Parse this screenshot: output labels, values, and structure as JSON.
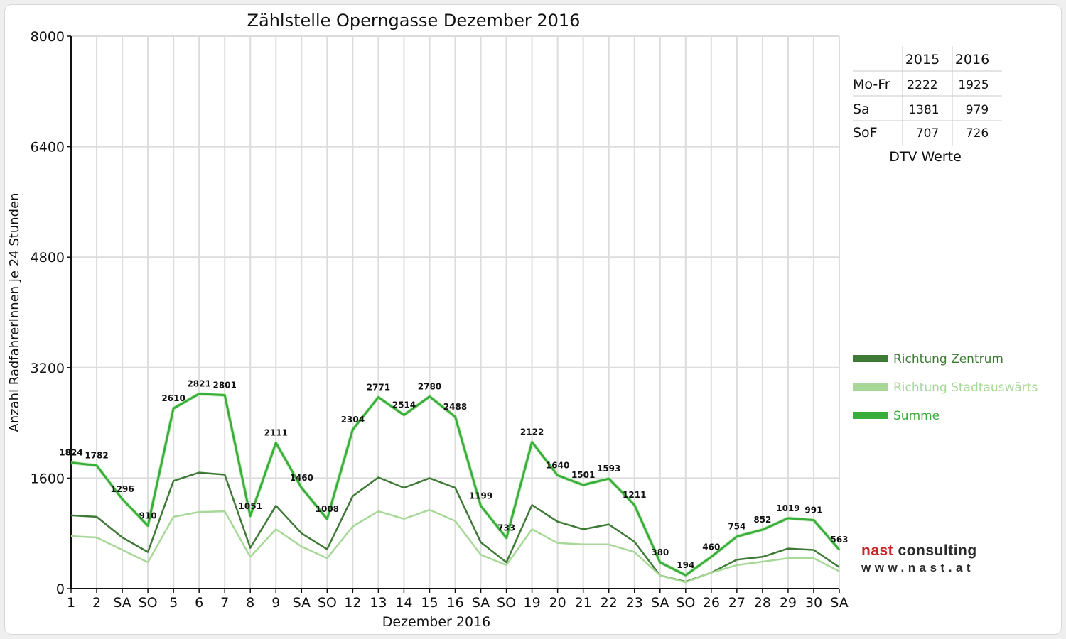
{
  "chart_data": {
    "type": "line",
    "title": "Zählstelle Operngasse Dezember 2016",
    "xlabel": "Dezember 2016",
    "ylabel": "Anzahl RadfahrerInnen je 24 Stunden",
    "ylim": [
      0,
      8000
    ],
    "yticks": [
      "0",
      "1600",
      "3200",
      "4800",
      "6400",
      "8000"
    ],
    "categories": [
      "1",
      "2",
      "SA",
      "SO",
      "5",
      "6",
      "7",
      "8",
      "9",
      "SA",
      "SO",
      "12",
      "13",
      "14",
      "15",
      "16",
      "SA",
      "SO",
      "19",
      "20",
      "21",
      "22",
      "23",
      "SA",
      "SO",
      "26",
      "27",
      "28",
      "29",
      "30",
      "SA"
    ],
    "highlight_categories": [
      "SO",
      "8",
      "26"
    ],
    "grid": true,
    "legend_position": "right",
    "series": [
      {
        "name": "Richtung Zentrum",
        "color": "#3e7a35",
        "values": [
          1060,
          1040,
          740,
          530,
          1560,
          1680,
          1650,
          590,
          1200,
          800,
          570,
          1340,
          1610,
          1460,
          1600,
          1460,
          670,
          380,
          1210,
          970,
          860,
          930,
          680,
          190,
          100,
          230,
          420,
          460,
          580,
          560,
          310
        ]
      },
      {
        "name": "Richtung Stadtauswärts",
        "color": "#a8d898",
        "values": [
          760,
          740,
          560,
          380,
          1040,
          1110,
          1120,
          460,
          860,
          610,
          440,
          900,
          1120,
          1010,
          1140,
          980,
          490,
          340,
          860,
          660,
          640,
          640,
          530,
          190,
          90,
          230,
          340,
          390,
          440,
          440,
          250
        ]
      },
      {
        "name": "Summe",
        "color": "#3aae3a",
        "values": [
          1824,
          1782,
          1296,
          910,
          2610,
          2821,
          2801,
          1051,
          2111,
          1460,
          1008,
          2304,
          2771,
          2514,
          2780,
          2488,
          1199,
          733,
          2122,
          1640,
          1501,
          1593,
          1211,
          380,
          194,
          460,
          754,
          852,
          1019,
          991,
          563
        ]
      }
    ],
    "data_labels": [
      "1824",
      "1782",
      "1296",
      "910",
      "2610",
      "2821",
      "2801",
      "1051",
      "2111",
      "1460",
      "1008",
      "2304",
      "2771",
      "2514",
      "2780",
      "2488",
      "1199",
      "733",
      "2122",
      "1640",
      "1501",
      "1593",
      "1211",
      "380",
      "194",
      "460",
      "754",
      "852",
      "1019",
      "991",
      "563"
    ]
  },
  "dtv_table": {
    "header": [
      "2015",
      "2016"
    ],
    "rows": [
      {
        "label": "Mo-Fr",
        "v2015": "2222",
        "v2016": "1925"
      },
      {
        "label": "Sa",
        "v2015": "1381",
        "v2016": "979"
      },
      {
        "label": "SoF",
        "v2015": "707",
        "v2016": "726"
      }
    ],
    "caption": "DTV Werte"
  },
  "logo": {
    "name_part1": "nast",
    "name_part2": "consulting",
    "url": "www.nast.at"
  }
}
